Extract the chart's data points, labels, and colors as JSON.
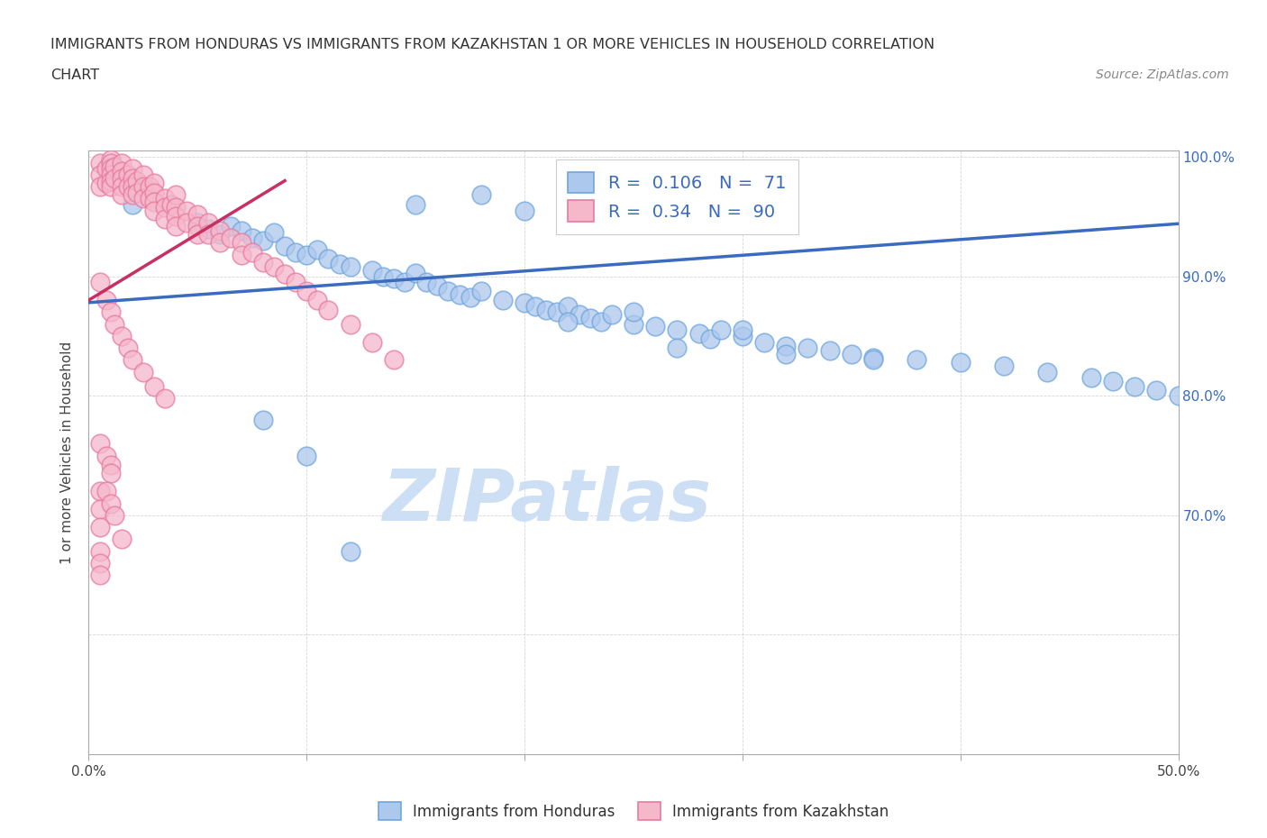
{
  "title_line1": "IMMIGRANTS FROM HONDURAS VS IMMIGRANTS FROM KAZAKHSTAN 1 OR MORE VEHICLES IN HOUSEHOLD CORRELATION",
  "title_line2": "CHART",
  "source_text": "Source: ZipAtlas.com",
  "ylabel": "1 or more Vehicles in Household",
  "xlim": [
    0.0,
    0.5
  ],
  "ylim": [
    0.5,
    1.005
  ],
  "xtick_vals": [
    0.0,
    0.1,
    0.2,
    0.3,
    0.4,
    0.5
  ],
  "xtick_labels": [
    "0.0%",
    "",
    "",
    "",
    "",
    "50.0%"
  ],
  "ytick_vals": [
    0.5,
    0.6,
    0.7,
    0.8,
    0.9,
    1.0
  ],
  "ytick_labels_right": [
    "",
    "",
    "70.0%",
    "80.0%",
    "90.0%",
    "100.0%"
  ],
  "blue_color": "#adc8ed",
  "blue_edge_color": "#6ea6de",
  "pink_color": "#f5b8cb",
  "pink_edge_color": "#e87aa0",
  "blue_line_color": "#3a6bbf",
  "pink_line_color": "#c73060",
  "R_blue": 0.106,
  "N_blue": 71,
  "R_pink": 0.34,
  "N_pink": 90,
  "legend_text_color": "#3a6bbf",
  "watermark_text": "ZIPatlas",
  "watermark_color": "#ccdff5",
  "blue_line_x0": 0.0,
  "blue_line_y0": 0.878,
  "blue_line_x1": 0.5,
  "blue_line_y1": 0.944,
  "pink_line_x0": 0.0,
  "pink_line_y0": 0.88,
  "pink_line_x1": 0.09,
  "pink_line_y1": 0.98,
  "blue_x": [
    0.02,
    0.05,
    0.055,
    0.06,
    0.065,
    0.07,
    0.075,
    0.08,
    0.085,
    0.09,
    0.095,
    0.1,
    0.105,
    0.11,
    0.115,
    0.12,
    0.13,
    0.135,
    0.14,
    0.145,
    0.15,
    0.155,
    0.16,
    0.165,
    0.17,
    0.175,
    0.18,
    0.19,
    0.2,
    0.205,
    0.21,
    0.215,
    0.22,
    0.225,
    0.23,
    0.235,
    0.24,
    0.25,
    0.26,
    0.27,
    0.28,
    0.285,
    0.29,
    0.3,
    0.31,
    0.32,
    0.33,
    0.34,
    0.35,
    0.36,
    0.38,
    0.4,
    0.42,
    0.44,
    0.46,
    0.47,
    0.48,
    0.49,
    0.5,
    0.27,
    0.32,
    0.36,
    0.2,
    0.25,
    0.3,
    0.15,
    0.18,
    0.22,
    0.1,
    0.08,
    0.12
  ],
  "blue_y": [
    0.96,
    0.945,
    0.94,
    0.935,
    0.942,
    0.938,
    0.932,
    0.93,
    0.937,
    0.925,
    0.92,
    0.918,
    0.922,
    0.915,
    0.91,
    0.908,
    0.905,
    0.9,
    0.898,
    0.895,
    0.903,
    0.895,
    0.892,
    0.888,
    0.885,
    0.882,
    0.888,
    0.88,
    0.878,
    0.875,
    0.872,
    0.87,
    0.875,
    0.868,
    0.865,
    0.862,
    0.868,
    0.86,
    0.858,
    0.855,
    0.852,
    0.848,
    0.855,
    0.85,
    0.845,
    0.842,
    0.84,
    0.838,
    0.835,
    0.832,
    0.83,
    0.828,
    0.825,
    0.82,
    0.815,
    0.812,
    0.808,
    0.805,
    0.8,
    0.84,
    0.835,
    0.83,
    0.955,
    0.87,
    0.855,
    0.96,
    0.968,
    0.862,
    0.75,
    0.78,
    0.67
  ],
  "pink_x": [
    0.005,
    0.005,
    0.005,
    0.008,
    0.008,
    0.01,
    0.01,
    0.01,
    0.01,
    0.01,
    0.01,
    0.012,
    0.012,
    0.015,
    0.015,
    0.015,
    0.015,
    0.015,
    0.018,
    0.018,
    0.02,
    0.02,
    0.02,
    0.02,
    0.022,
    0.022,
    0.025,
    0.025,
    0.025,
    0.028,
    0.028,
    0.03,
    0.03,
    0.03,
    0.03,
    0.035,
    0.035,
    0.035,
    0.038,
    0.04,
    0.04,
    0.04,
    0.04,
    0.045,
    0.045,
    0.05,
    0.05,
    0.05,
    0.055,
    0.055,
    0.06,
    0.06,
    0.065,
    0.07,
    0.07,
    0.075,
    0.08,
    0.085,
    0.09,
    0.095,
    0.1,
    0.105,
    0.11,
    0.12,
    0.13,
    0.14,
    0.005,
    0.008,
    0.01,
    0.012,
    0.015,
    0.018,
    0.02,
    0.025,
    0.03,
    0.035,
    0.005,
    0.008,
    0.01,
    0.01,
    0.005,
    0.005,
    0.005,
    0.008,
    0.01,
    0.012,
    0.015,
    0.005,
    0.005,
    0.005
  ],
  "pink_y": [
    0.995,
    0.985,
    0.975,
    0.99,
    0.978,
    0.998,
    0.995,
    0.99,
    0.985,
    0.98,
    0.975,
    0.992,
    0.982,
    0.995,
    0.988,
    0.982,
    0.975,
    0.968,
    0.985,
    0.975,
    0.99,
    0.982,
    0.975,
    0.968,
    0.98,
    0.97,
    0.985,
    0.975,
    0.965,
    0.975,
    0.965,
    0.978,
    0.97,
    0.962,
    0.955,
    0.965,
    0.958,
    0.948,
    0.96,
    0.968,
    0.958,
    0.95,
    0.942,
    0.955,
    0.945,
    0.952,
    0.942,
    0.935,
    0.945,
    0.935,
    0.938,
    0.928,
    0.932,
    0.928,
    0.918,
    0.92,
    0.912,
    0.908,
    0.902,
    0.895,
    0.888,
    0.88,
    0.872,
    0.86,
    0.845,
    0.83,
    0.895,
    0.88,
    0.87,
    0.86,
    0.85,
    0.84,
    0.83,
    0.82,
    0.808,
    0.798,
    0.76,
    0.75,
    0.742,
    0.735,
    0.72,
    0.705,
    0.69,
    0.72,
    0.71,
    0.7,
    0.68,
    0.67,
    0.66,
    0.65
  ]
}
